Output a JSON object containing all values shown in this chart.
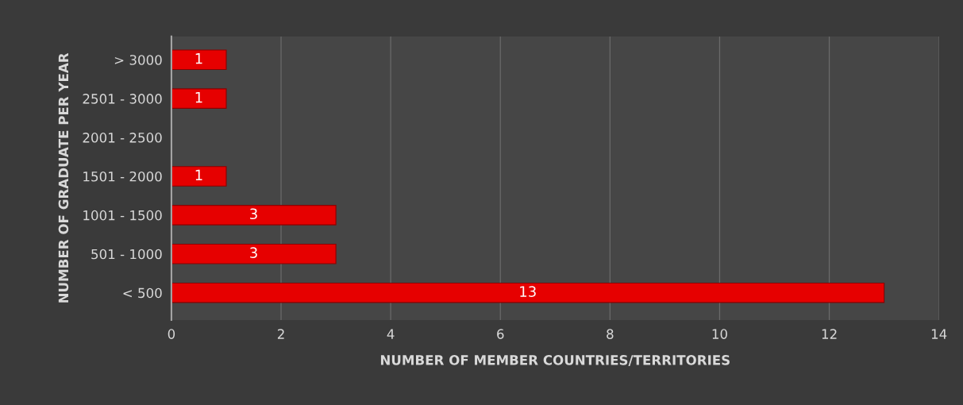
{
  "chart_data": {
    "type": "bar",
    "orientation": "horizontal",
    "categories": [
      "> 3000",
      "2501 - 3000",
      "2001 - 2500",
      "1501 - 2000",
      "1001 - 1500",
      "501 - 1000",
      "< 500"
    ],
    "values": [
      1,
      1,
      0,
      1,
      3,
      3,
      13
    ],
    "value_labels": [
      "1",
      "1",
      null,
      "1",
      "3",
      "3",
      "13"
    ],
    "color": "#e60000",
    "xlabel": "NUMBER OF MEMBER COUNTRIES/TERRITORIES",
    "ylabel": "NUMBER OF GRADUATE PER YEAR",
    "xlim": [
      0,
      14
    ],
    "xticks": [
      0,
      2,
      4,
      6,
      8,
      10,
      12,
      14
    ],
    "grid": "x",
    "legend": false
  }
}
